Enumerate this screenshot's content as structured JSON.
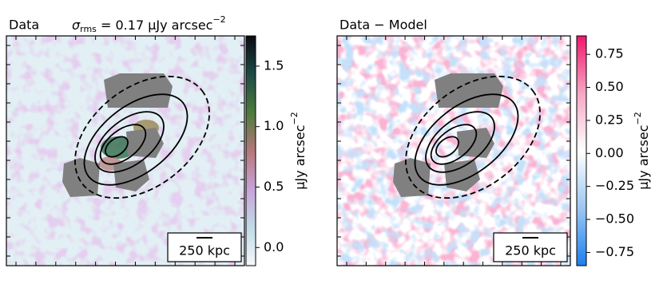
{
  "chart_data": [
    {
      "type": "image",
      "title": "Data",
      "annotation": {
        "symbol": "σ",
        "subscript": "rms",
        "text": " = 0.17 μJy arcsec",
        "superscript": "−2"
      },
      "colorbar_label": {
        "text": "μJy arcsec",
        "superscript": "−2"
      },
      "clim": [
        -0.15,
        1.75
      ],
      "cticks": [
        {
          "value": 0,
          "label": "0.0"
        },
        0.5,
        {
          "value": 1,
          "label": "1.0"
        },
        1.5
      ],
      "colormap": [
        "#f4f8fb",
        "#bfdbe6",
        "#c8a3d8",
        "#b4787a",
        "#4d7a3c",
        "#1d4a47",
        "#0b0a12"
      ],
      "scale_bar": "250 kpc"
    },
    {
      "type": "image",
      "title": "Data − Model",
      "colorbar_label": {
        "text": "μJy arcsec",
        "superscript": "−2"
      },
      "clim": [
        -0.85,
        0.89
      ],
      "cticks": [
        {
          "value": -0.75,
          "label": "−0.75"
        },
        {
          "value": -0.5,
          "label": "−0.50"
        },
        {
          "value": -0.25,
          "label": "−0.25"
        },
        {
          "value": 0,
          "label": "0.00"
        },
        0.25,
        {
          "value": 0.5,
          "label": "0.50"
        },
        0.75
      ],
      "colormap": [
        "#1a80f0",
        "#9cc6f3",
        "#ffffff",
        "#f7a6c4",
        "#f0166e"
      ],
      "scale_bar": "250 kpc"
    }
  ]
}
